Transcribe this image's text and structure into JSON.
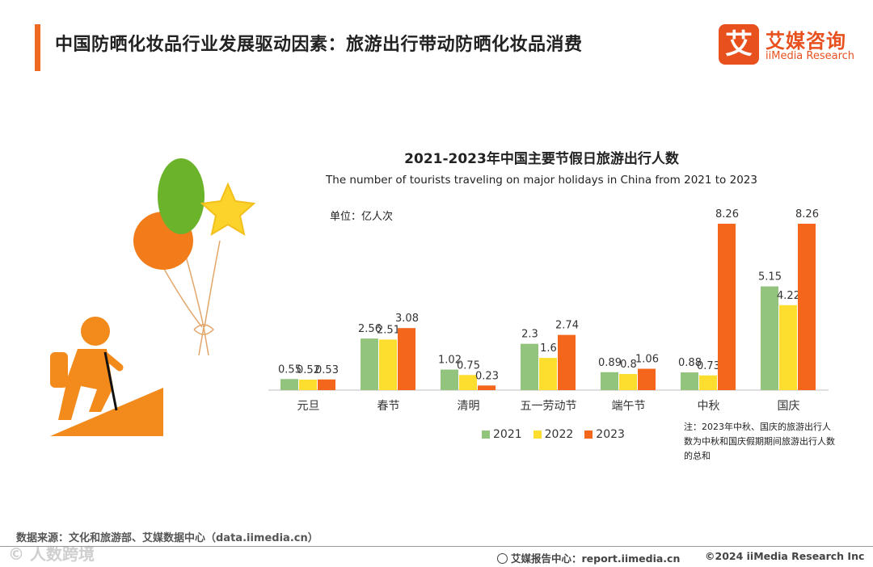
{
  "header": {
    "title": "中国防晒化妆品行业发展驱动因素：旅游出行带动防晒化妆品消费",
    "logo_mark": "艾",
    "logo_cn": "艾媒咨询",
    "logo_en": "iiMedia Research"
  },
  "chart_data": {
    "type": "bar",
    "title": "2021-2023年中国主要节假日旅游出行人数",
    "subtitle": "The number of tourists traveling on major holidays in China from 2021 to 2023",
    "unit": "单位：亿人次",
    "categories": [
      "元旦",
      "春节",
      "清明",
      "五一劳动节",
      "端午节",
      "中秋",
      "国庆"
    ],
    "series": [
      {
        "name": "2021",
        "color": "#92c47d",
        "values": [
          0.55,
          2.56,
          1.02,
          2.3,
          0.89,
          0.88,
          5.15
        ]
      },
      {
        "name": "2022",
        "color": "#fddd2e",
        "values": [
          0.52,
          2.51,
          0.75,
          1.6,
          0.8,
          0.73,
          4.22
        ]
      },
      {
        "name": "2023",
        "color": "#f4661b",
        "values": [
          0.53,
          3.08,
          0.23,
          2.74,
          1.06,
          8.26,
          8.26
        ]
      }
    ],
    "ylim": [
      0,
      8.26
    ],
    "legend": "bottom",
    "grid": false
  },
  "note": "注：2023年中秋、国庆的旅游出行人数为中秋和国庆假期期间旅游出行人数的总和",
  "footer": {
    "source": "数据来源：文化和旅游部、艾媒数据中心（data.iimedia.cn）",
    "report_center": "艾媒报告中心：report.iimedia.cn",
    "copyright": "©2024  iiMedia Research  Inc",
    "watermark": "© 人数跨境"
  }
}
